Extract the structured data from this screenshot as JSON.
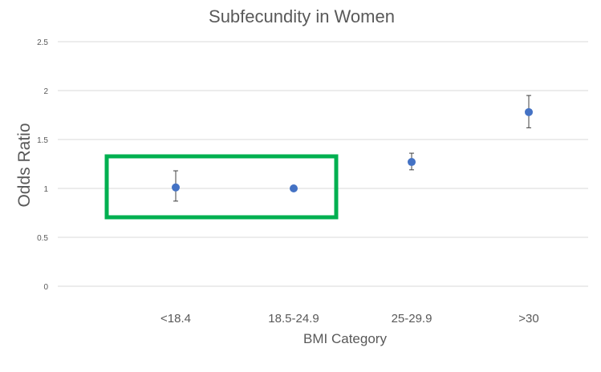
{
  "chart_data": {
    "type": "scatter",
    "title": "Subfecundity in Women",
    "xlabel": "BMI Category",
    "ylabel": "Odds Ratio",
    "categories": [
      "<18.4",
      "18.5-24.9",
      "25-29.9",
      ">30"
    ],
    "series": [
      {
        "values": [
          1.01,
          1.0,
          1.27,
          1.78
        ],
        "error_low": [
          0.87,
          1.0,
          1.19,
          1.62
        ],
        "error_high": [
          1.18,
          1.0,
          1.36,
          1.95
        ]
      }
    ],
    "ylim": [
      0,
      2.5
    ],
    "yticks": [
      "0",
      "0.5",
      "1",
      "1.5",
      "2",
      "2.5"
    ],
    "grid": true,
    "legend": "none",
    "highlight": {
      "categories": [
        "<18.4",
        "18.5-24.9"
      ],
      "color": "#00b050"
    },
    "colors": {
      "marker": "#4472c4",
      "gridline": "#d9d9d9",
      "text": "#595959",
      "error_bar": "#404040"
    }
  }
}
